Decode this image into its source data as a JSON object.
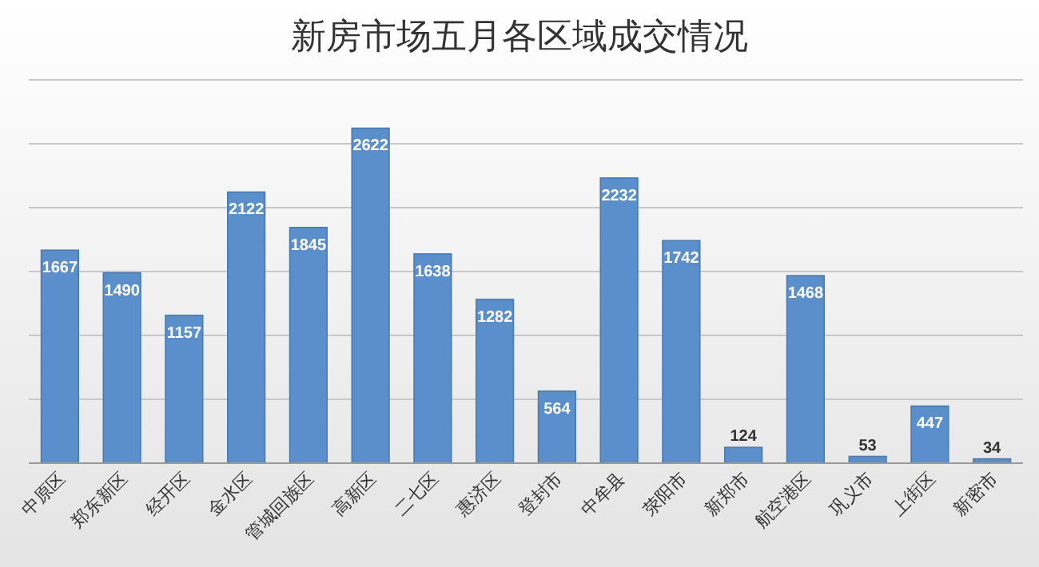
{
  "chart_data": {
    "type": "bar",
    "title": "新房市场五月各区域成交情况",
    "categories": [
      "中原区",
      "郑东新区",
      "经开区",
      "金水区",
      "管城回族区",
      "高新区",
      "二七区",
      "惠济区",
      "登封市",
      "中牟县",
      "荥阳市",
      "新郑市",
      "航空港区",
      "巩义市",
      "上街区",
      "新密市"
    ],
    "values": [
      1667,
      1490,
      1157,
      2122,
      1845,
      2622,
      1638,
      1282,
      564,
      2232,
      1742,
      124,
      1468,
      53,
      447,
      34
    ],
    "color": "#5b8fcb",
    "data_labels": true,
    "grid": "y",
    "ylim": [
      0,
      3000
    ],
    "yticks": [
      {
        "value": 0,
        "label": null
      },
      {
        "value": 500,
        "label": null
      },
      {
        "value": 1000,
        "label": null
      },
      {
        "value": 1500,
        "label": null
      },
      {
        "value": 2000,
        "label": null
      },
      {
        "value": 2500,
        "label": null
      },
      {
        "value": 3000,
        "label": null
      }
    ],
    "tick_labels": "x"
  }
}
